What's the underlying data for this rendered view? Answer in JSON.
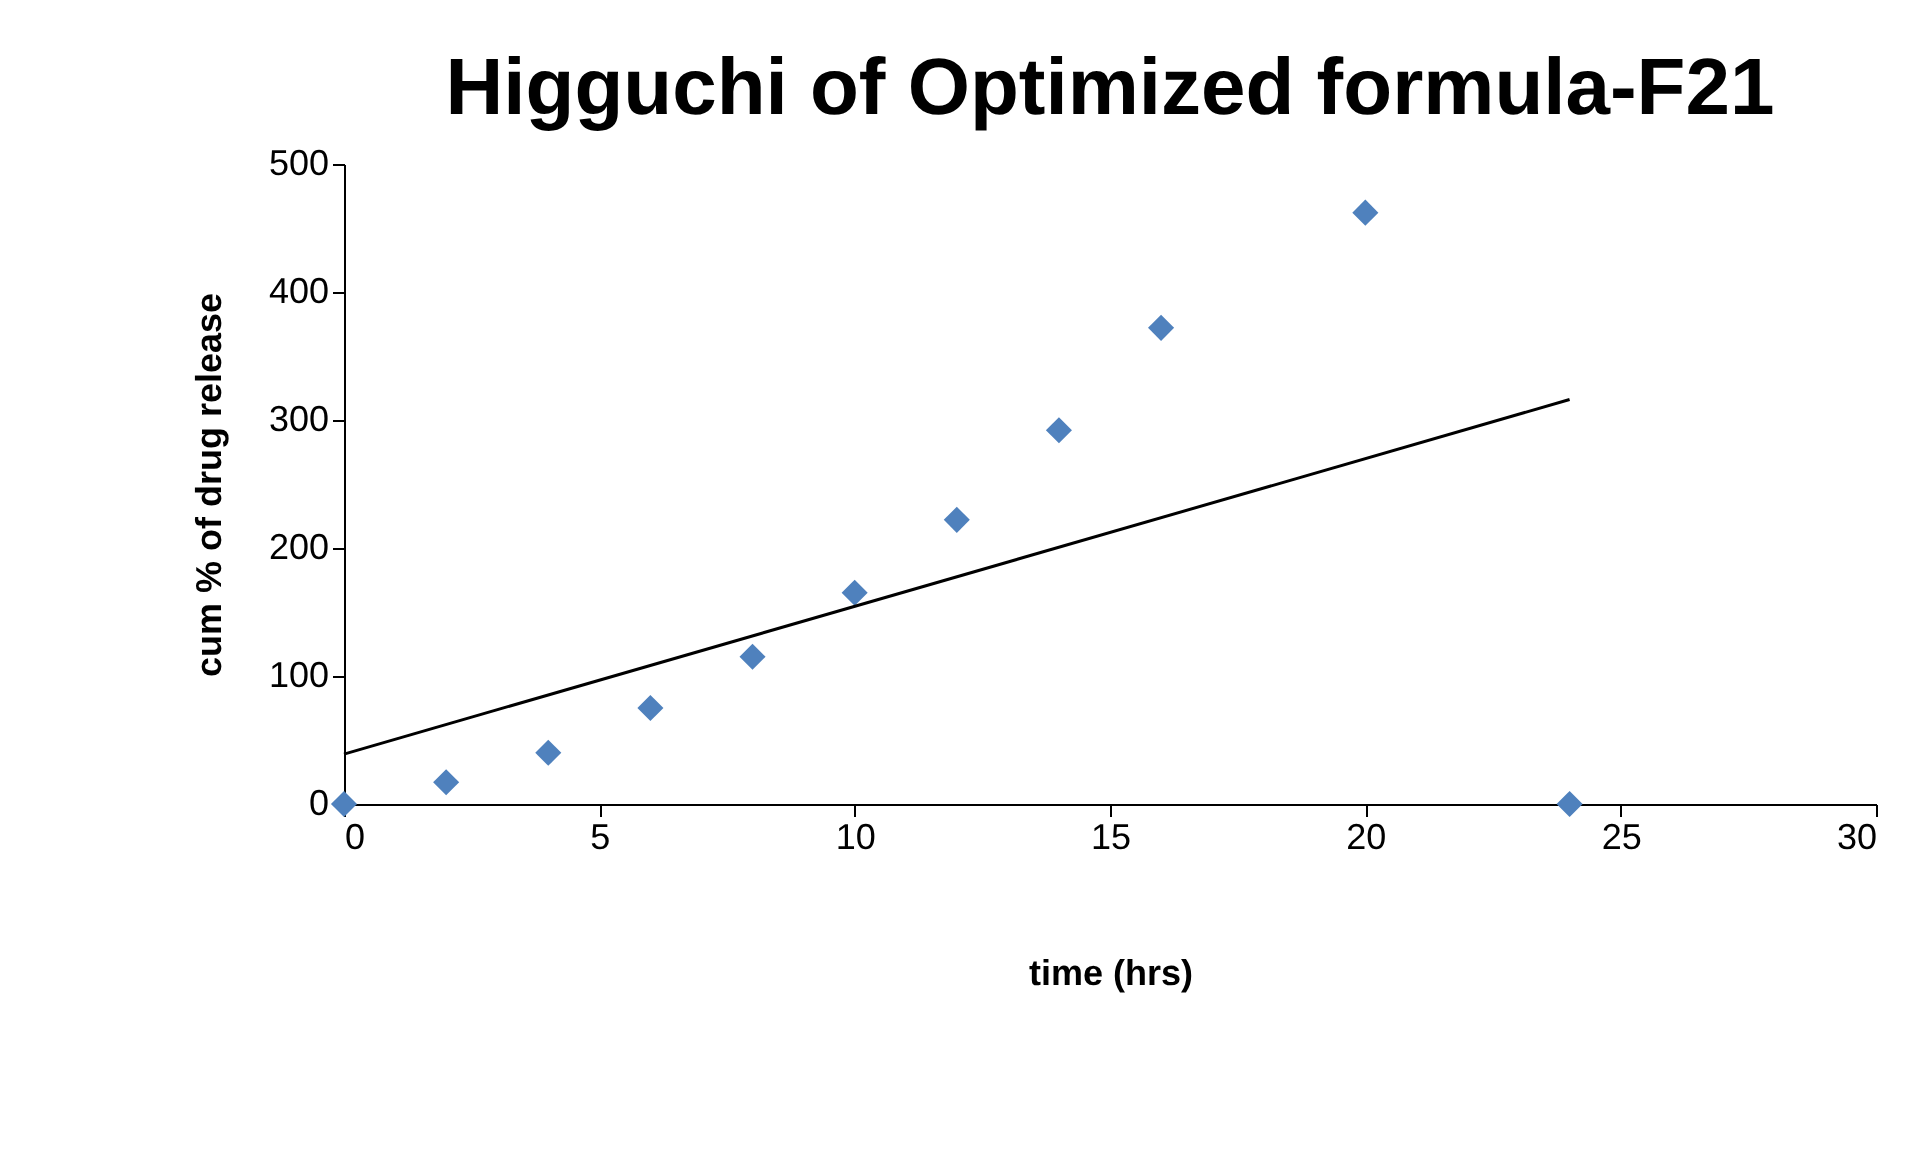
{
  "chart_data": {
    "type": "scatter",
    "title": "Higguchi of Optimized formula-F21",
    "xlabel": "time (hrs)",
    "ylabel": "cum % of drug release",
    "marker": "diamond",
    "grid": false,
    "xlim": [
      0,
      30
    ],
    "xticks": [
      0,
      5,
      10,
      15,
      20,
      25,
      30
    ],
    "ylim": [
      0,
      500
    ],
    "yticks": [
      0,
      100,
      200,
      300,
      400,
      500
    ],
    "series": [
      {
        "color": "#4f81bd",
        "x": [
          0,
          2,
          4,
          6,
          8,
          10,
          12,
          14,
          16,
          20,
          24
        ],
        "values": [
          0,
          17,
          40,
          75,
          115,
          165,
          222,
          292,
          372,
          462,
          0
        ]
      },
      {
        "type": "line",
        "color": "#000000",
        "marker": "none",
        "line_style": "solid",
        "x": [
          0,
          24
        ],
        "values": [
          39,
          316
        ]
      }
    ]
  }
}
